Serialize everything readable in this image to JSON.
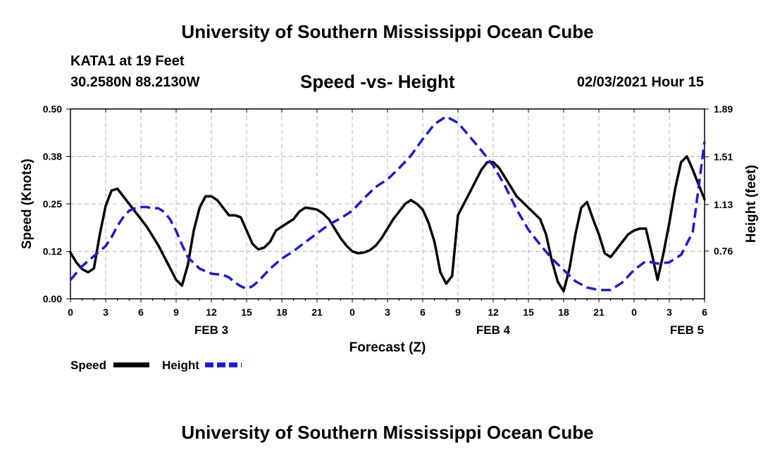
{
  "header": {
    "title": "University of Southern Mississippi Ocean Cube",
    "station": "KATA1 at 19 Feet",
    "coords": "30.2580N 88.2130W",
    "datetime": "02/03/2021 Hour 15"
  },
  "footer": {
    "title": "University of Southern Mississippi Ocean Cube"
  },
  "colors": {
    "speed": "#000000",
    "height": "#1a1adc",
    "grid": "#b4b4b4"
  },
  "chart_data": {
    "type": "line",
    "title": "Speed -vs- Height",
    "xlabel": "Forecast (Z)",
    "ylabel": "Speed (Knots)",
    "y2label": "Height (feet)",
    "x_unit": "hours since FEB 3 00Z",
    "xlim": [
      0,
      54
    ],
    "ylim": [
      0,
      0.5
    ],
    "y2lim": [
      0.38,
      1.89
    ],
    "x_ticks": [
      0,
      3,
      6,
      9,
      12,
      15,
      18,
      21,
      24,
      27,
      30,
      33,
      36,
      39,
      42,
      45,
      48,
      51,
      54
    ],
    "x_tick_labels": [
      "0",
      "3",
      "6",
      "9",
      "12",
      "15",
      "18",
      "21",
      "0",
      "3",
      "6",
      "9",
      "12",
      "15",
      "18",
      "21",
      "0",
      "3",
      "6"
    ],
    "date_labels": [
      {
        "x": 12,
        "label": "FEB 3"
      },
      {
        "x": 36,
        "label": "FEB 4"
      },
      {
        "x": 52.5,
        "label": "FEB 5"
      }
    ],
    "y_ticks": [
      0,
      0.125,
      0.25,
      0.375,
      0.5
    ],
    "y_tick_labels": [
      "0.00",
      "0.12",
      "0.25",
      "0.38",
      "0.50"
    ],
    "y2_ticks": [
      0.76,
      1.13,
      1.51,
      1.89
    ],
    "y2_tick_labels": [
      "0.76",
      "1.13",
      "1.51",
      "1.89"
    ],
    "series": [
      {
        "name": "Speed",
        "axis": "left",
        "style": "solid",
        "x": [
          0,
          0.5,
          1,
          1.5,
          2,
          2.5,
          3,
          3.5,
          4,
          4.5,
          5,
          5.5,
          6,
          6.5,
          7,
          7.5,
          8,
          8.5,
          9,
          9.5,
          10,
          10.5,
          11,
          11.5,
          12,
          12.5,
          13,
          13.5,
          14,
          14.5,
          15,
          15.5,
          16,
          16.5,
          17,
          17.5,
          18,
          18.5,
          19,
          19.5,
          20,
          20.5,
          21,
          21.5,
          22,
          22.5,
          23,
          23.5,
          24,
          24.5,
          25,
          25.5,
          26,
          26.5,
          27,
          27.5,
          28,
          28.5,
          29,
          29.5,
          30,
          30.5,
          31,
          31.5,
          32,
          32.5,
          33,
          33.5,
          34,
          34.5,
          35,
          35.5,
          36,
          36.5,
          37,
          37.5,
          38,
          38.5,
          39,
          39.5,
          40,
          40.5,
          41,
          41.5,
          42,
          42.5,
          43,
          43.5,
          44,
          44.5,
          45,
          45.5,
          46,
          46.5,
          47,
          47.5,
          48,
          48.5,
          49,
          49.5,
          50,
          50.5,
          51,
          51.5,
          52,
          52.5,
          53,
          53.5,
          54
        ],
        "values": [
          0.122,
          0.096,
          0.078,
          0.07,
          0.08,
          0.17,
          0.245,
          0.285,
          0.29,
          0.27,
          0.25,
          0.23,
          0.21,
          0.19,
          0.165,
          0.14,
          0.11,
          0.08,
          0.05,
          0.035,
          0.09,
          0.18,
          0.24,
          0.27,
          0.27,
          0.26,
          0.24,
          0.22,
          0.22,
          0.215,
          0.18,
          0.145,
          0.13,
          0.135,
          0.15,
          0.18,
          0.19,
          0.2,
          0.21,
          0.23,
          0.24,
          0.238,
          0.235,
          0.225,
          0.21,
          0.185,
          0.16,
          0.14,
          0.125,
          0.12,
          0.122,
          0.128,
          0.14,
          0.16,
          0.185,
          0.21,
          0.23,
          0.25,
          0.26,
          0.25,
          0.235,
          0.2,
          0.15,
          0.07,
          0.04,
          0.06,
          0.22,
          0.25,
          0.28,
          0.31,
          0.34,
          0.36,
          0.36,
          0.345,
          0.32,
          0.295,
          0.27,
          0.255,
          0.24,
          0.225,
          0.21,
          0.17,
          0.1,
          0.045,
          0.02,
          0.08,
          0.17,
          0.24,
          0.255,
          0.21,
          0.17,
          0.12,
          0.11,
          0.13,
          0.15,
          0.17,
          0.18,
          0.185,
          0.185,
          0.12,
          0.05,
          0.12,
          0.2,
          0.29,
          0.36,
          0.375,
          0.34,
          0.3,
          0.262
        ]
      },
      {
        "name": "Height",
        "axis": "right",
        "style": "dashed",
        "x": [
          0,
          1,
          2,
          3,
          3.5,
          4,
          4.5,
          5,
          5.5,
          6,
          6.5,
          7,
          7.5,
          8,
          8.5,
          9,
          9.5,
          10,
          11,
          12,
          13,
          13.5,
          14,
          14.5,
          15,
          15.5,
          16,
          17,
          18,
          19,
          20,
          21,
          22,
          23,
          24,
          25,
          26,
          27,
          28,
          29,
          30,
          31,
          32,
          33,
          34,
          35,
          36,
          37,
          38,
          39,
          40,
          41,
          42,
          43,
          44,
          45,
          46,
          47,
          48,
          49,
          50,
          51,
          52,
          53,
          54
        ],
        "values": [
          0.53,
          0.64,
          0.72,
          0.8,
          0.87,
          0.96,
          1.03,
          1.08,
          1.1,
          1.11,
          1.11,
          1.1,
          1.1,
          1.07,
          1.01,
          0.92,
          0.81,
          0.71,
          0.62,
          0.58,
          0.57,
          0.55,
          0.51,
          0.48,
          0.46,
          0.48,
          0.52,
          0.62,
          0.7,
          0.76,
          0.83,
          0.9,
          0.97,
          1.02,
          1.08,
          1.18,
          1.27,
          1.33,
          1.42,
          1.52,
          1.65,
          1.77,
          1.83,
          1.78,
          1.67,
          1.56,
          1.44,
          1.28,
          1.09,
          0.93,
          0.81,
          0.7,
          0.61,
          0.52,
          0.47,
          0.45,
          0.45,
          0.51,
          0.61,
          0.68,
          0.66,
          0.67,
          0.73,
          0.91,
          1.63
        ]
      }
    ],
    "legend": {
      "position": "bottom-left",
      "entries": [
        {
          "label": "Speed",
          "style": "solid"
        },
        {
          "label": "Height",
          "style": "dashed"
        }
      ]
    }
  }
}
